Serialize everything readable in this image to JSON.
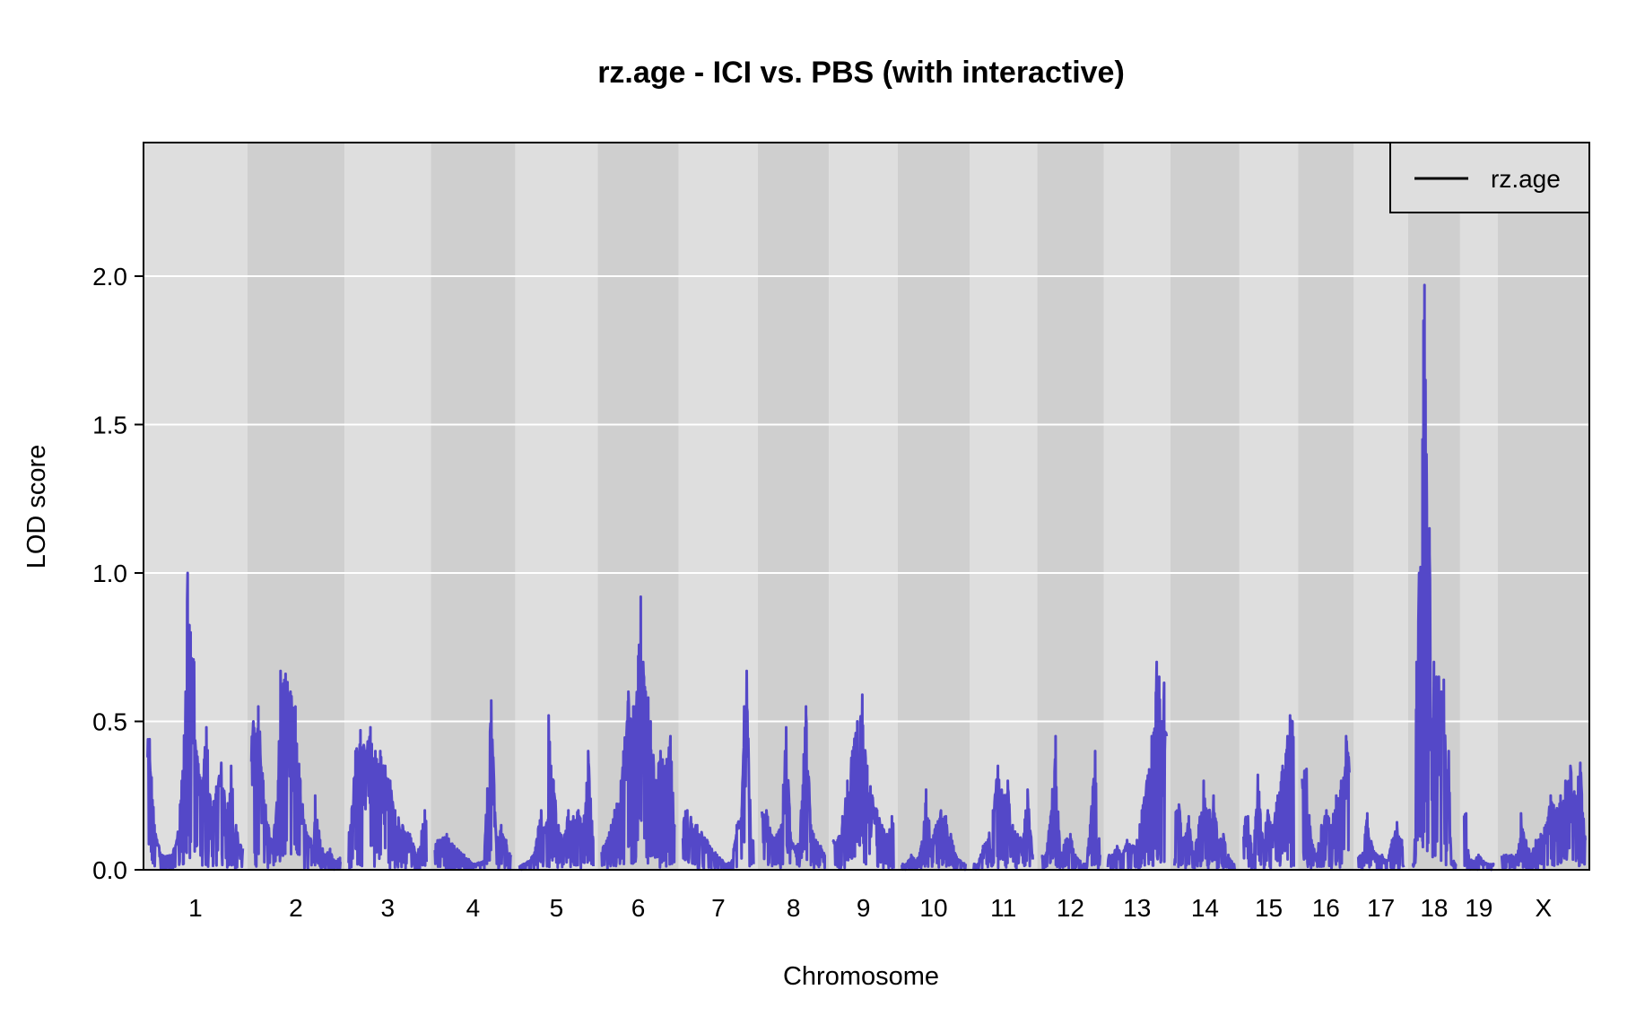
{
  "chart_data": {
    "type": "line",
    "title": "rz.age - ICI vs. PBS (with interactive)",
    "xlabel": "Chromosome",
    "ylabel": "LOD score",
    "ylim": [
      0,
      2.45
    ],
    "yticks": [
      0.0,
      0.5,
      1.0,
      1.5,
      2.0
    ],
    "ytick_labels": [
      "0.0",
      "0.5",
      "1.0",
      "1.5",
      "2.0"
    ],
    "grid": "horizontal",
    "legend": {
      "position": "top-right",
      "entries": [
        "rz.age"
      ]
    },
    "colors": {
      "line": "#5448c8",
      "band_light": "#dedede",
      "band_dark": "#cfcfcf",
      "grid": "#ffffff"
    },
    "chromosomes": [
      "1",
      "2",
      "3",
      "4",
      "5",
      "6",
      "7",
      "8",
      "9",
      "10",
      "11",
      "12",
      "13",
      "14",
      "15",
      "16",
      "17",
      "18",
      "19",
      "X"
    ],
    "chromosome_lengths_mb": [
      195.5,
      182.1,
      160.0,
      156.5,
      151.8,
      149.7,
      145.4,
      129.4,
      124.6,
      130.7,
      122.1,
      120.1,
      120.4,
      125.2,
      104.0,
      98.2,
      95.3,
      90.7,
      61.4,
      171.0
    ],
    "series": [
      {
        "name": "rz.age",
        "peaks": [
          {
            "chr": "1",
            "mb": [
              5,
              15,
              30,
              50,
              60,
              70,
              78,
              82,
              88,
              95,
              100,
              110,
              120,
              130,
              140,
              150,
              160,
              170,
              180,
              190
            ],
            "lod": [
              0.44,
              0.15,
              0.05,
              0.05,
              0.1,
              0.3,
              0.6,
              1.0,
              0.8,
              0.7,
              0.4,
              0.3,
              0.48,
              0.2,
              0.28,
              0.36,
              0.2,
              0.35,
              0.15,
              0.08
            ]
          },
          {
            "chr": "2",
            "mb": [
              5,
              15,
              25,
              35,
              45,
              55,
              60,
              70,
              80,
              90,
              100,
              110,
              120,
              130,
              140,
              150,
              160,
              170,
              180
            ],
            "lod": [
              0.5,
              0.55,
              0.3,
              0.15,
              0.1,
              0.3,
              0.67,
              0.66,
              0.6,
              0.55,
              0.3,
              0.15,
              0.1,
              0.25,
              0.1,
              0.05,
              0.07,
              0.03,
              0.04
            ]
          },
          {
            "chr": "3",
            "mb": [
              5,
              15,
              25,
              35,
              45,
              55,
              65,
              75,
              85,
              95,
              110,
              125,
              140,
              155
            ],
            "lod": [
              0.15,
              0.4,
              0.47,
              0.4,
              0.48,
              0.4,
              0.4,
              0.35,
              0.3,
              0.2,
              0.15,
              0.12,
              0.05,
              0.2
            ]
          },
          {
            "chr": "4",
            "mb": [
              10,
              25,
              40,
              60,
              80,
              100,
              115,
              125,
              135,
              145,
              155
            ],
            "lod": [
              0.1,
              0.12,
              0.08,
              0.05,
              0.02,
              0.03,
              0.57,
              0.1,
              0.15,
              0.1,
              0.05
            ]
          },
          {
            "chr": "5",
            "mb": [
              10,
              30,
              45,
              55,
              60,
              65,
              70,
              80,
              90,
              100,
              110,
              120,
              130,
              140,
              150
            ],
            "lod": [
              0.02,
              0.05,
              0.2,
              0.15,
              0.52,
              0.35,
              0.3,
              0.15,
              0.1,
              0.2,
              0.18,
              0.2,
              0.15,
              0.4,
              0.1
            ]
          },
          {
            "chr": "6",
            "mb": [
              5,
              20,
              40,
              55,
              65,
              75,
              80,
              85,
              90,
              95,
              100,
              110,
              120,
              130,
              140,
              148
            ],
            "lod": [
              0.08,
              0.15,
              0.3,
              0.6,
              0.55,
              0.72,
              0.92,
              0.7,
              0.6,
              0.58,
              0.5,
              0.3,
              0.4,
              0.35,
              0.45,
              0.15
            ]
          },
          {
            "chr": "7",
            "mb": [
              10,
              30,
              50,
              70,
              90,
              100,
              110,
              120,
              125,
              130,
              140
            ],
            "lod": [
              0.2,
              0.15,
              0.1,
              0.05,
              0.02,
              0.03,
              0.15,
              0.2,
              0.55,
              0.67,
              0.1
            ]
          },
          {
            "chr": "8",
            "mb": [
              10,
              25,
              40,
              50,
              60,
              70,
              80,
              90,
              100,
              110,
              120,
              128
            ],
            "lod": [
              0.2,
              0.1,
              0.15,
              0.48,
              0.1,
              0.08,
              0.2,
              0.55,
              0.15,
              0.1,
              0.08,
              0.05
            ]
          },
          {
            "chr": "9",
            "mb": [
              10,
              20,
              30,
              40,
              50,
              60,
              70,
              80,
              90,
              100,
              110,
              120
            ],
            "lod": [
              0.1,
              0.18,
              0.3,
              0.4,
              0.5,
              0.59,
              0.35,
              0.25,
              0.2,
              0.15,
              0.12,
              0.18
            ]
          },
          {
            "chr": "10",
            "mb": [
              10,
              20,
              30,
              40,
              50,
              60,
              70,
              80,
              90,
              100,
              110,
              120,
              130
            ],
            "lod": [
              0.02,
              0.05,
              0.03,
              0.08,
              0.27,
              0.1,
              0.15,
              0.2,
              0.18,
              0.12,
              0.05,
              0.03,
              0.02
            ]
          },
          {
            "chr": "11",
            "mb": [
              10,
              20,
              30,
              40,
              50,
              60,
              70,
              80,
              90,
              100,
              110,
              120
            ],
            "lod": [
              0.02,
              0.08,
              0.1,
              0.2,
              0.35,
              0.25,
              0.3,
              0.15,
              0.12,
              0.1,
              0.27,
              0.05
            ]
          },
          {
            "chr": "12",
            "mb": [
              10,
              20,
              30,
              40,
              50,
              60,
              70,
              80,
              90,
              100,
              110,
              120
            ],
            "lod": [
              0.05,
              0.18,
              0.45,
              0.05,
              0.1,
              0.12,
              0.05,
              0.03,
              0.02,
              0.15,
              0.4,
              0.05
            ]
          },
          {
            "chr": "13",
            "mb": [
              10,
              20,
              30,
              40,
              50,
              60,
              70,
              80,
              90,
              100,
              105,
              110,
              115,
              120
            ],
            "lod": [
              0.05,
              0.08,
              0.05,
              0.1,
              0.08,
              0.1,
              0.2,
              0.3,
              0.45,
              0.7,
              0.65,
              0.5,
              0.63,
              0.45
            ]
          },
          {
            "chr": "14",
            "mb": [
              10,
              20,
              30,
              40,
              50,
              60,
              70,
              80,
              90,
              100,
              110,
              120
            ],
            "lod": [
              0.22,
              0.1,
              0.18,
              0.05,
              0.15,
              0.3,
              0.2,
              0.25,
              0.1,
              0.12,
              0.05,
              0.02
            ]
          },
          {
            "chr": "15",
            "mb": [
              10,
              20,
              30,
              40,
              50,
              60,
              70,
              80,
              90,
              95,
              100
            ],
            "lod": [
              0.18,
              0.05,
              0.32,
              0.1,
              0.2,
              0.15,
              0.25,
              0.35,
              0.45,
              0.52,
              0.5
            ]
          },
          {
            "chr": "16",
            "mb": [
              10,
              20,
              30,
              40,
              50,
              60,
              70,
              80,
              90,
              95
            ],
            "lod": [
              0.34,
              0.1,
              0.05,
              0.15,
              0.2,
              0.15,
              0.25,
              0.3,
              0.45,
              0.38
            ]
          },
          {
            "chr": "17",
            "mb": [
              10,
              20,
              30,
              40,
              50,
              60,
              70,
              80,
              90
            ],
            "lod": [
              0.05,
              0.19,
              0.08,
              0.05,
              0.05,
              0.03,
              0.1,
              0.16,
              0.1
            ]
          },
          {
            "chr": "18",
            "mb": [
              5,
              10,
              15,
              18,
              20,
              22,
              24,
              26,
              28,
              30,
              33,
              36,
              40,
              45,
              50,
              55,
              60,
              65,
              70,
              75,
              80,
              85,
              88
            ],
            "lod": [
              0.02,
              0.7,
              1.0,
              1.02,
              0.3,
              1.45,
              1.85,
              1.97,
              1.65,
              1.4,
              1.0,
              1.15,
              0.5,
              0.7,
              0.65,
              0.65,
              0.6,
              0.64,
              0.3,
              0.4,
              0.02,
              0.03,
              0.02
            ]
          },
          {
            "chr": "19",
            "mb": [
              5,
              10,
              20,
              30,
              40,
              50,
              60
            ],
            "lod": [
              0.19,
              0.05,
              0.03,
              0.05,
              0.03,
              0.02,
              0.02
            ]
          },
          {
            "chr": "X",
            "mb": [
              10,
              30,
              40,
              50,
              60,
              70,
              80,
              90,
              100,
              110,
              120,
              130,
              140,
              150,
              160,
              170
            ],
            "lod": [
              0.05,
              0.05,
              0.19,
              0.1,
              0.05,
              0.1,
              0.12,
              0.15,
              0.25,
              0.2,
              0.25,
              0.3,
              0.35,
              0.25,
              0.36,
              0.1
            ]
          }
        ]
      }
    ]
  }
}
